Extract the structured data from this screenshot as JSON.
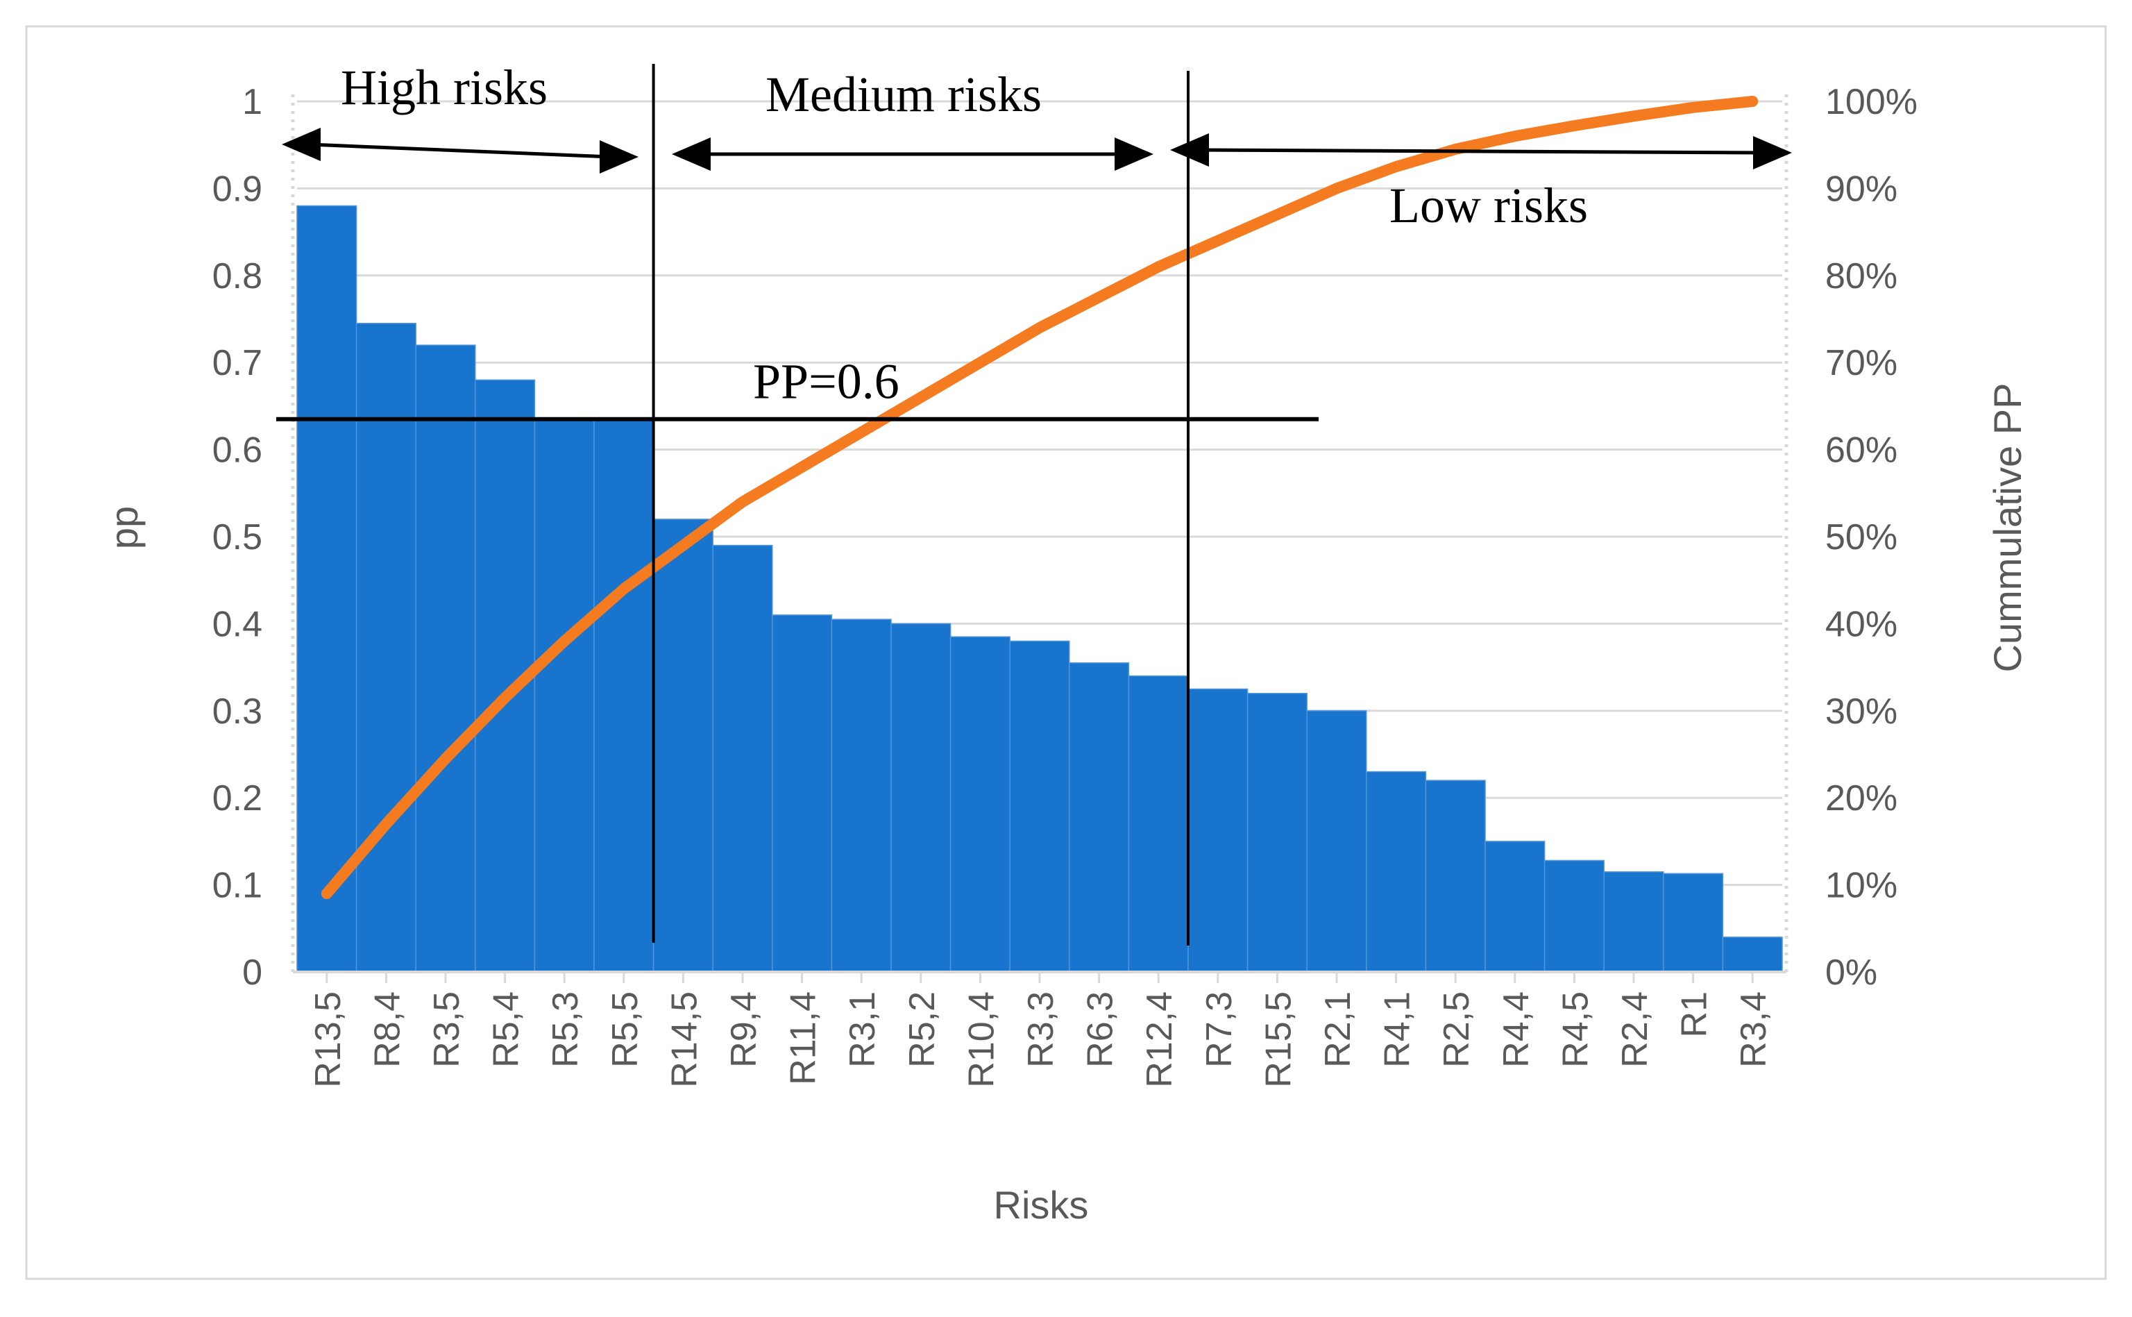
{
  "chart_data": {
    "type": "bar",
    "combo": "pareto",
    "categories": [
      "R13,5",
      "R8,4",
      "R3,5",
      "R5,4",
      "R5,3",
      "R5,5",
      "R14,5",
      "R9,4",
      "R11,4",
      "R3,1",
      "R5,2",
      "R10,4",
      "R3,3",
      "R6,3",
      "R12,4",
      "R7,3",
      "R15,5",
      "R2,1",
      "R4,1",
      "R2,5",
      "R4,4",
      "R4,5",
      "R2,4",
      "R1",
      "R3,4"
    ],
    "series": [
      {
        "name": "pp",
        "type": "bar",
        "axis": "left",
        "values": [
          0.88,
          0.745,
          0.72,
          0.68,
          0.635,
          0.635,
          0.52,
          0.49,
          0.41,
          0.405,
          0.4,
          0.385,
          0.38,
          0.355,
          0.34,
          0.325,
          0.32,
          0.3,
          0.23,
          0.22,
          0.15,
          0.128,
          0.115,
          0.113,
          0.04
        ]
      },
      {
        "name": "Cummulative PP",
        "type": "line",
        "axis": "right",
        "values": [
          0.09,
          0.17,
          0.245,
          0.315,
          0.38,
          0.44,
          0.49,
          0.54,
          0.58,
          0.62,
          0.66,
          0.7,
          0.74,
          0.775,
          0.81,
          0.84,
          0.87,
          0.9,
          0.925,
          0.945,
          0.96,
          0.972,
          0.983,
          0.993,
          1.0
        ]
      }
    ],
    "xlabel": "Risks",
    "ylabel": "pp",
    "y2label": "Cummulative PP",
    "ylim": [
      0,
      1
    ],
    "y2lim": [
      0,
      1
    ],
    "yticks": [
      "0",
      "0.1",
      "0.2",
      "0.3",
      "0.4",
      "0.5",
      "0.6",
      "0.7",
      "0.8",
      "0.9",
      "1"
    ],
    "y2ticks": [
      "0%",
      "10%",
      "20%",
      "30%",
      "40%",
      "50%",
      "60%",
      "70%",
      "80%",
      "90%",
      "100%"
    ],
    "threshold": {
      "label": "PP=0.6",
      "value": 0.635
    },
    "zones": [
      {
        "label": "High risks",
        "from_category": 0,
        "to_category": 5
      },
      {
        "label": "Medium risks",
        "from_category": 6,
        "to_category": 14
      },
      {
        "label": "Low risks",
        "from_category": 15,
        "to_category": 24
      }
    ],
    "colors": {
      "bar": "#1874CD",
      "line": "#F47B20",
      "axis_text": "#595959",
      "grid": "#D9D9D9",
      "annotation": "#000000"
    },
    "grid": true
  }
}
